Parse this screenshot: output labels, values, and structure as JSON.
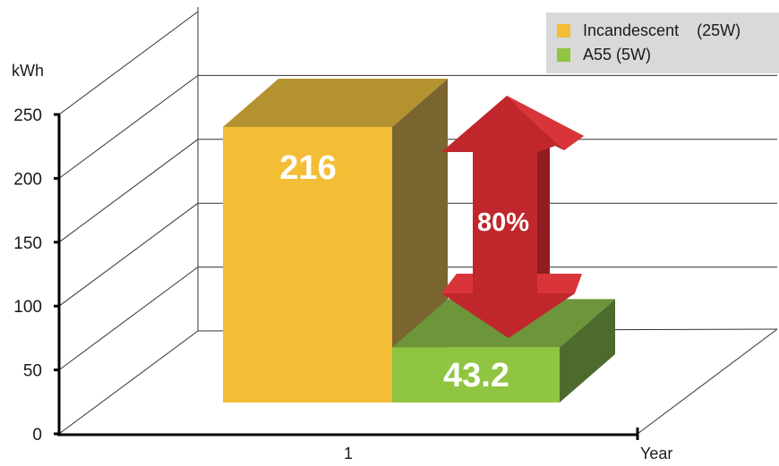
{
  "chart_data": {
    "type": "bar",
    "categories": [
      "1"
    ],
    "series": [
      {
        "name": "Incandescent    (25W)",
        "values": [
          216
        ],
        "color": "#f3bd36",
        "label": "216"
      },
      {
        "name": "A55 (5W)",
        "values": [
          43.2
        ],
        "color": "#8fc541",
        "label": "43.2"
      }
    ],
    "title": "",
    "xlabel": "Year",
    "ylabel": "kWh",
    "yticks": [
      "0",
      "50",
      "100",
      "150",
      "200",
      "250"
    ],
    "ylim": [
      0,
      250
    ],
    "grid": true,
    "legend": "top-right",
    "annotation": {
      "text": "80%",
      "color": "#c0272d"
    },
    "view": "3d"
  }
}
